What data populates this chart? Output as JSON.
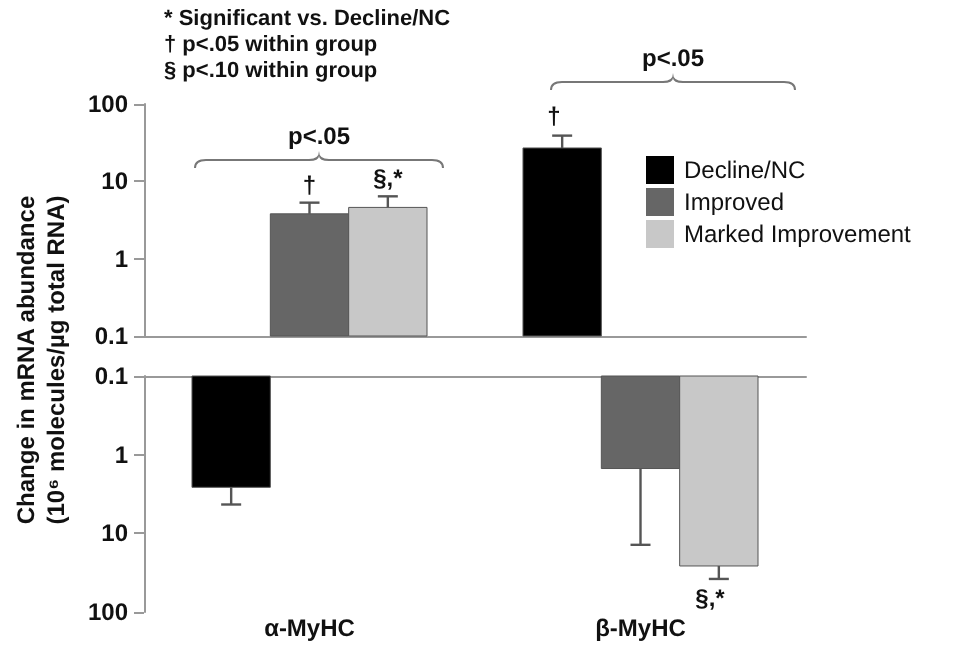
{
  "chart_data": [
    {
      "type": "bar",
      "ylabel": "Change in mRNA abundance\n(10⁶ molecules/µg total RNA)",
      "categories": [
        "α-MyHC",
        "β-MyHC"
      ],
      "log": true,
      "ylim": [
        0.1,
        100
      ],
      "yticks": [
        0.1,
        1,
        10,
        100
      ],
      "tick_labels": "y",
      "legend": "top right",
      "grid": false,
      "series": [
        {
          "name": "Decline/NC",
          "color": "#000000",
          "values": [
            null,
            27
          ],
          "errors": [
            null,
            [
              27,
              39
            ]
          ]
        },
        {
          "name": "Improved",
          "color": "#666666",
          "values": [
            3.8,
            null
          ],
          "errors": [
            [
              3.8,
              5.3
            ],
            null
          ]
        },
        {
          "name": "Marked Improvement",
          "color": "#c8c8c8",
          "values": [
            4.6,
            null
          ],
          "errors": [
            [
              4.6,
              6.4
            ],
            null
          ]
        }
      ],
      "annotations": [
        "* Significant vs. Decline/NC",
        "† p<.05 within group",
        "§ p<.10 within group",
        "p<.05",
        "p<.05",
        {
          "text": "†",
          "x": "α-MyHC",
          "y": 5.3
        },
        {
          "text": "§,*",
          "x": "α-MyHC",
          "y": 6.4
        },
        "†"
      ]
    },
    {
      "type": "bar",
      "categories": [
        "α-MyHC",
        "β-MyHC"
      ],
      "log": true,
      "ylim": [
        100,
        0.1
      ],
      "yticks": [
        0.1,
        1,
        10,
        100
      ],
      "grid": false,
      "series": [
        {
          "color": "#000000",
          "values": [
            2.6,
            null
          ],
          "errors": [
            [
              2.6,
              4.3
            ],
            null
          ]
        },
        {
          "color": "#666666",
          "values": [
            null,
            1.5
          ],
          "errors": [
            null,
            [
              1.5,
              14
            ]
          ]
        },
        {
          "color": "#c8c8c8",
          "values": [
            null,
            26
          ],
          "errors": [
            null,
            [
              26,
              38
            ]
          ]
        }
      ],
      "annotations": [
        "§,*"
      ]
    }
  ]
}
